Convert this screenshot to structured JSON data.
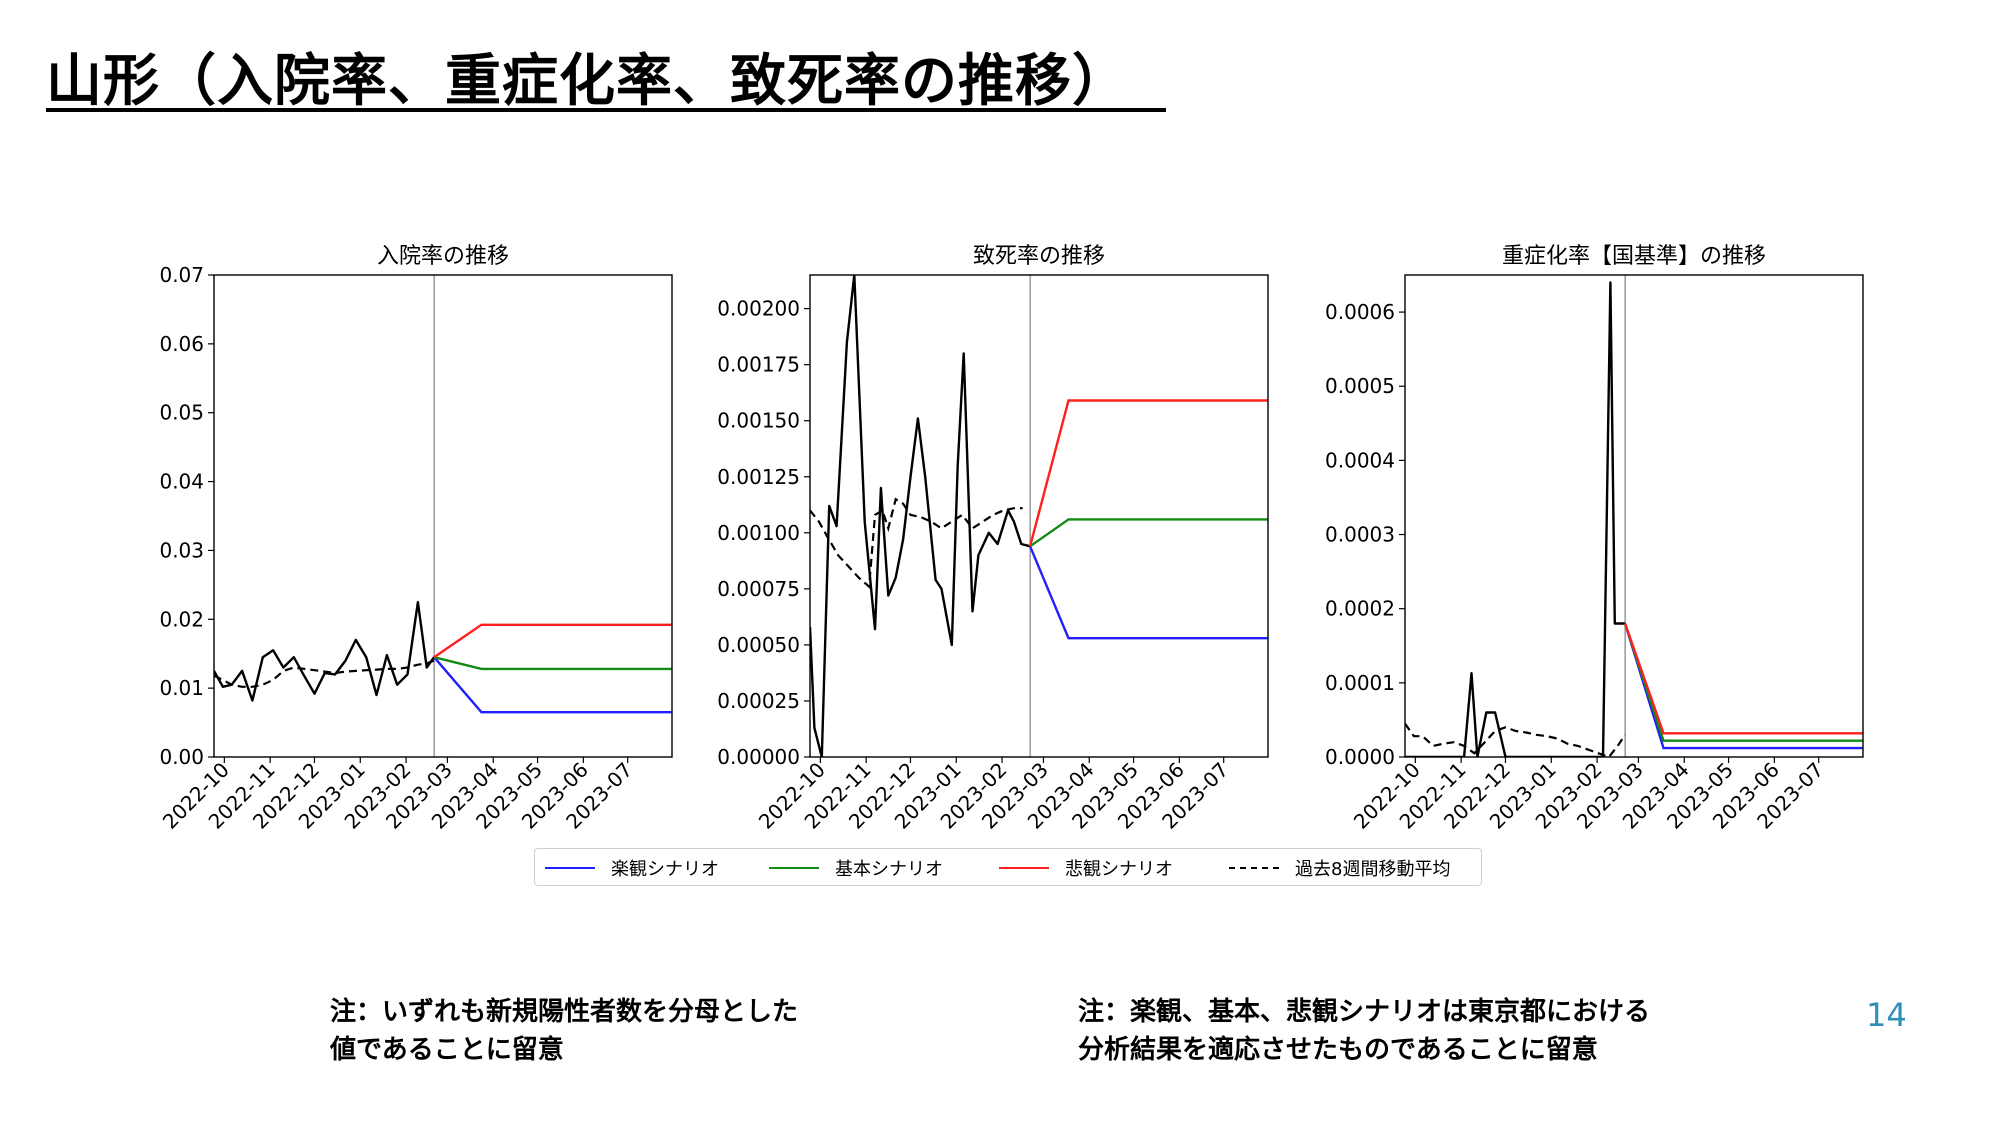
{
  "slide": {
    "title": "山形（入院率、重症化率、致死率の推移）",
    "notes": {
      "left": [
        "注：いずれも新規陽性者数を分母とした",
        "値であることに留意"
      ],
      "right": [
        "注：楽観、基本、悲観シナリオは東京都における",
        "分析結果を適応させたものであることに留意"
      ]
    },
    "page_number": "14"
  },
  "legend": {
    "items": [
      {
        "label": "楽観シナリオ",
        "color": "#1f1fff",
        "style": "solid"
      },
      {
        "label": "基本シナリオ",
        "color": "#138a13",
        "style": "solid"
      },
      {
        "label": "悲観シナリオ",
        "color": "#ff1f1f",
        "style": "solid"
      },
      {
        "label": "過去8週間移動平均",
        "color": "#000000",
        "style": "dashed"
      }
    ]
  },
  "colors": {
    "optimistic": "#1f1fff",
    "base": "#138a13",
    "pessimistic": "#ff1f1f",
    "observed": "#000000",
    "divider": "#888888"
  },
  "chart_data": [
    {
      "type": "line",
      "title": "入院率の推移",
      "x_ticks": [
        "2022-10",
        "2022-11",
        "2022-12",
        "2023-01",
        "2023-02",
        "2023-03",
        "2023-04",
        "2023-05",
        "2023-06",
        "2023-07"
      ],
      "xlim": [
        "2022-09-24",
        "2023-07-31"
      ],
      "ylim": [
        0,
        0.07
      ],
      "y_ticks": [
        0.0,
        0.01,
        0.02,
        0.03,
        0.04,
        0.05,
        0.06,
        0.07
      ],
      "y_tick_labels": [
        "0.00",
        "0.01",
        "0.02",
        "0.03",
        "0.04",
        "0.05",
        "0.06",
        "0.07"
      ],
      "divider_x": "2023-02-20",
      "observed": {
        "x": [
          "2022-09-24",
          "2022-09-30",
          "2022-10-06",
          "2022-10-13",
          "2022-10-20",
          "2022-10-27",
          "2022-11-03",
          "2022-11-10",
          "2022-11-17",
          "2022-11-24",
          "2022-12-01",
          "2022-12-08",
          "2022-12-15",
          "2022-12-22",
          "2022-12-29",
          "2023-01-05",
          "2023-01-12",
          "2023-01-19",
          "2023-01-26",
          "2023-02-02",
          "2023-02-09",
          "2023-02-15",
          "2023-02-20"
        ],
        "y": [
          0.0125,
          0.0102,
          0.0105,
          0.0125,
          0.0082,
          0.0145,
          0.0155,
          0.013,
          0.0145,
          0.0118,
          0.0092,
          0.0122,
          0.012,
          0.014,
          0.017,
          0.0145,
          0.009,
          0.0148,
          0.0105,
          0.012,
          0.0225,
          0.013,
          0.0145
        ]
      },
      "moving_average": {
        "x": [
          "2022-09-24",
          "2022-09-30",
          "2022-10-06",
          "2022-10-13",
          "2022-10-20",
          "2022-10-27",
          "2022-11-03",
          "2022-11-10",
          "2022-11-17",
          "2022-11-24",
          "2022-12-01",
          "2022-12-08",
          "2022-12-15",
          "2022-12-22",
          "2022-12-29",
          "2023-01-05",
          "2023-01-12",
          "2023-01-19",
          "2023-01-26",
          "2023-02-02",
          "2023-02-09",
          "2023-02-15",
          "2023-02-20"
        ],
        "y": [
          0.0118,
          0.0112,
          0.0105,
          0.0102,
          0.0102,
          0.0105,
          0.0112,
          0.0125,
          0.013,
          0.0128,
          0.0126,
          0.0124,
          0.0122,
          0.0124,
          0.0125,
          0.0126,
          0.0127,
          0.0128,
          0.0128,
          0.013,
          0.0134,
          0.0136,
          0.014
        ]
      },
      "series": [
        {
          "name": "楽観シナリオ",
          "x": [
            "2023-02-20",
            "2023-03-24",
            "2023-07-31"
          ],
          "y": [
            0.0145,
            0.0065,
            0.0065
          ]
        },
        {
          "name": "基本シナリオ",
          "x": [
            "2023-02-20",
            "2023-03-24",
            "2023-07-31"
          ],
          "y": [
            0.0145,
            0.0128,
            0.0128
          ]
        },
        {
          "name": "悲観シナリオ",
          "x": [
            "2023-02-20",
            "2023-03-24",
            "2023-07-31"
          ],
          "y": [
            0.0145,
            0.0192,
            0.0192
          ]
        }
      ]
    },
    {
      "type": "line",
      "title": "致死率の推移",
      "x_ticks": [
        "2022-10",
        "2022-11",
        "2022-12",
        "2023-01",
        "2023-02",
        "2023-03",
        "2023-04",
        "2023-05",
        "2023-06",
        "2023-07"
      ],
      "xlim": [
        "2022-09-24",
        "2023-07-31"
      ],
      "ylim": [
        0,
        0.00215
      ],
      "y_ticks": [
        0,
        0.00025,
        0.0005,
        0.00075,
        0.001,
        0.00125,
        0.0015,
        0.00175,
        0.002
      ],
      "y_tick_labels": [
        "0.00000",
        "0.00025",
        "0.00050",
        "0.00075",
        "0.00100",
        "0.00125",
        "0.00150",
        "0.00175",
        "0.00200"
      ],
      "divider_x": "2023-02-20",
      "observed": {
        "x": [
          "2022-09-24",
          "2022-09-27",
          "2022-10-02",
          "2022-10-07",
          "2022-10-12",
          "2022-10-19",
          "2022-10-24",
          "2022-10-31",
          "2022-11-07",
          "2022-11-11",
          "2022-11-16",
          "2022-11-21",
          "2022-11-26",
          "2022-12-01",
          "2022-12-06",
          "2022-12-11",
          "2022-12-18",
          "2022-12-22",
          "2022-12-29",
          "2023-01-02",
          "2023-01-06",
          "2023-01-12",
          "2023-01-16",
          "2023-01-23",
          "2023-01-29",
          "2023-02-05",
          "2023-02-09",
          "2023-02-14",
          "2023-02-20"
        ],
        "y": [
          0.00058,
          0.00013,
          0.0,
          0.00112,
          0.00103,
          0.00185,
          0.00215,
          0.00105,
          0.00057,
          0.0012,
          0.00072,
          0.0008,
          0.00097,
          0.00125,
          0.00151,
          0.00125,
          0.00079,
          0.00075,
          0.0005,
          0.0013,
          0.0018,
          0.00065,
          0.0009,
          0.001,
          0.00095,
          0.0011,
          0.00105,
          0.00095,
          0.00094
        ]
      },
      "moving_average": {
        "x": [
          "2022-09-24",
          "2022-09-30",
          "2022-10-06",
          "2022-10-13",
          "2022-10-20",
          "2022-10-27",
          "2022-11-03",
          "2022-11-07",
          "2022-11-12",
          "2022-11-16",
          "2022-11-21",
          "2022-11-26",
          "2022-12-01",
          "2022-12-08",
          "2022-12-15",
          "2022-12-22",
          "2022-12-29",
          "2023-01-05",
          "2023-01-12",
          "2023-01-19",
          "2023-01-26",
          "2023-02-02",
          "2023-02-09",
          "2023-02-15"
        ],
        "y": [
          0.0011,
          0.00105,
          0.00098,
          0.0009,
          0.00085,
          0.0008,
          0.00076,
          0.00108,
          0.0011,
          0.00102,
          0.00115,
          0.00113,
          0.00108,
          0.00107,
          0.00105,
          0.00102,
          0.00105,
          0.00108,
          0.00102,
          0.00105,
          0.00108,
          0.0011,
          0.00111,
          0.00111
        ]
      },
      "series": [
        {
          "name": "楽観シナリオ",
          "x": [
            "2023-02-20",
            "2023-03-18",
            "2023-07-31"
          ],
          "y": [
            0.00094,
            0.00053,
            0.00053
          ]
        },
        {
          "name": "基本シナリオ",
          "x": [
            "2023-02-20",
            "2023-03-18",
            "2023-07-31"
          ],
          "y": [
            0.00094,
            0.00106,
            0.00106
          ]
        },
        {
          "name": "悲観シナリオ",
          "x": [
            "2023-02-20",
            "2023-03-18",
            "2023-07-31"
          ],
          "y": [
            0.00094,
            0.00159,
            0.00159
          ]
        }
      ]
    },
    {
      "type": "line",
      "title": "重症化率【国基準】の推移",
      "x_ticks": [
        "2022-10",
        "2022-11",
        "2022-12",
        "2023-01",
        "2023-02",
        "2023-03",
        "2023-04",
        "2023-05",
        "2023-06",
        "2023-07"
      ],
      "xlim": [
        "2022-09-24",
        "2023-07-31"
      ],
      "ylim": [
        0,
        0.00065
      ],
      "y_ticks": [
        0,
        0.0001,
        0.0002,
        0.0003,
        0.0004,
        0.0005,
        0.0006
      ],
      "y_tick_labels": [
        "0.0000",
        "0.0001",
        "0.0002",
        "0.0003",
        "0.0004",
        "0.0005",
        "0.0006"
      ],
      "divider_x": "2023-02-20",
      "observed": {
        "x": [
          "2022-09-24",
          "2022-10-20",
          "2022-10-27",
          "2022-11-03",
          "2022-11-08",
          "2022-11-12",
          "2022-11-18",
          "2022-11-24",
          "2022-12-01",
          "2022-12-08",
          "2023-01-05",
          "2023-02-05",
          "2023-02-10",
          "2023-02-13",
          "2023-02-20"
        ],
        "y": [
          0.0,
          0.0,
          0.0,
          0.0,
          0.000113,
          0.0,
          6e-05,
          6e-05,
          0.0,
          0.0,
          0.0,
          0.0,
          0.00064,
          0.00018,
          0.00018
        ]
      },
      "moving_average": {
        "x": [
          "2022-09-24",
          "2022-09-30",
          "2022-10-06",
          "2022-10-13",
          "2022-10-20",
          "2022-10-27",
          "2022-11-03",
          "2022-11-10",
          "2022-11-17",
          "2022-11-24",
          "2022-12-01",
          "2022-12-08",
          "2022-12-15",
          "2022-12-22",
          "2022-12-29",
          "2023-01-05",
          "2023-01-12",
          "2023-01-19",
          "2023-01-26",
          "2023-02-02",
          "2023-02-09",
          "2023-02-15",
          "2023-02-20"
        ],
        "y": [
          4.5e-05,
          2.8e-05,
          2.8e-05,
          1.5e-05,
          1.8e-05,
          2e-05,
          1.5e-05,
          5e-06,
          2e-05,
          3.5e-05,
          4e-05,
          3.5e-05,
          3.3e-05,
          3e-05,
          2.8e-05,
          2.5e-05,
          1.8e-05,
          1.5e-05,
          1e-05,
          5e-06,
          0.0,
          1.5e-05,
          3e-05
        ]
      },
      "series": [
        {
          "name": "楽観シナリオ",
          "x": [
            "2023-02-20",
            "2023-03-18",
            "2023-07-31"
          ],
          "y": [
            0.00018,
            1.2e-05,
            1.2e-05
          ]
        },
        {
          "name": "基本シナリオ",
          "x": [
            "2023-02-20",
            "2023-03-18",
            "2023-07-31"
          ],
          "y": [
            0.00018,
            2.2e-05,
            2.2e-05
          ]
        },
        {
          "name": "悲観シナリオ",
          "x": [
            "2023-02-20",
            "2023-03-18",
            "2023-07-31"
          ],
          "y": [
            0.00018,
            3.2e-05,
            3.2e-05
          ]
        }
      ]
    }
  ]
}
